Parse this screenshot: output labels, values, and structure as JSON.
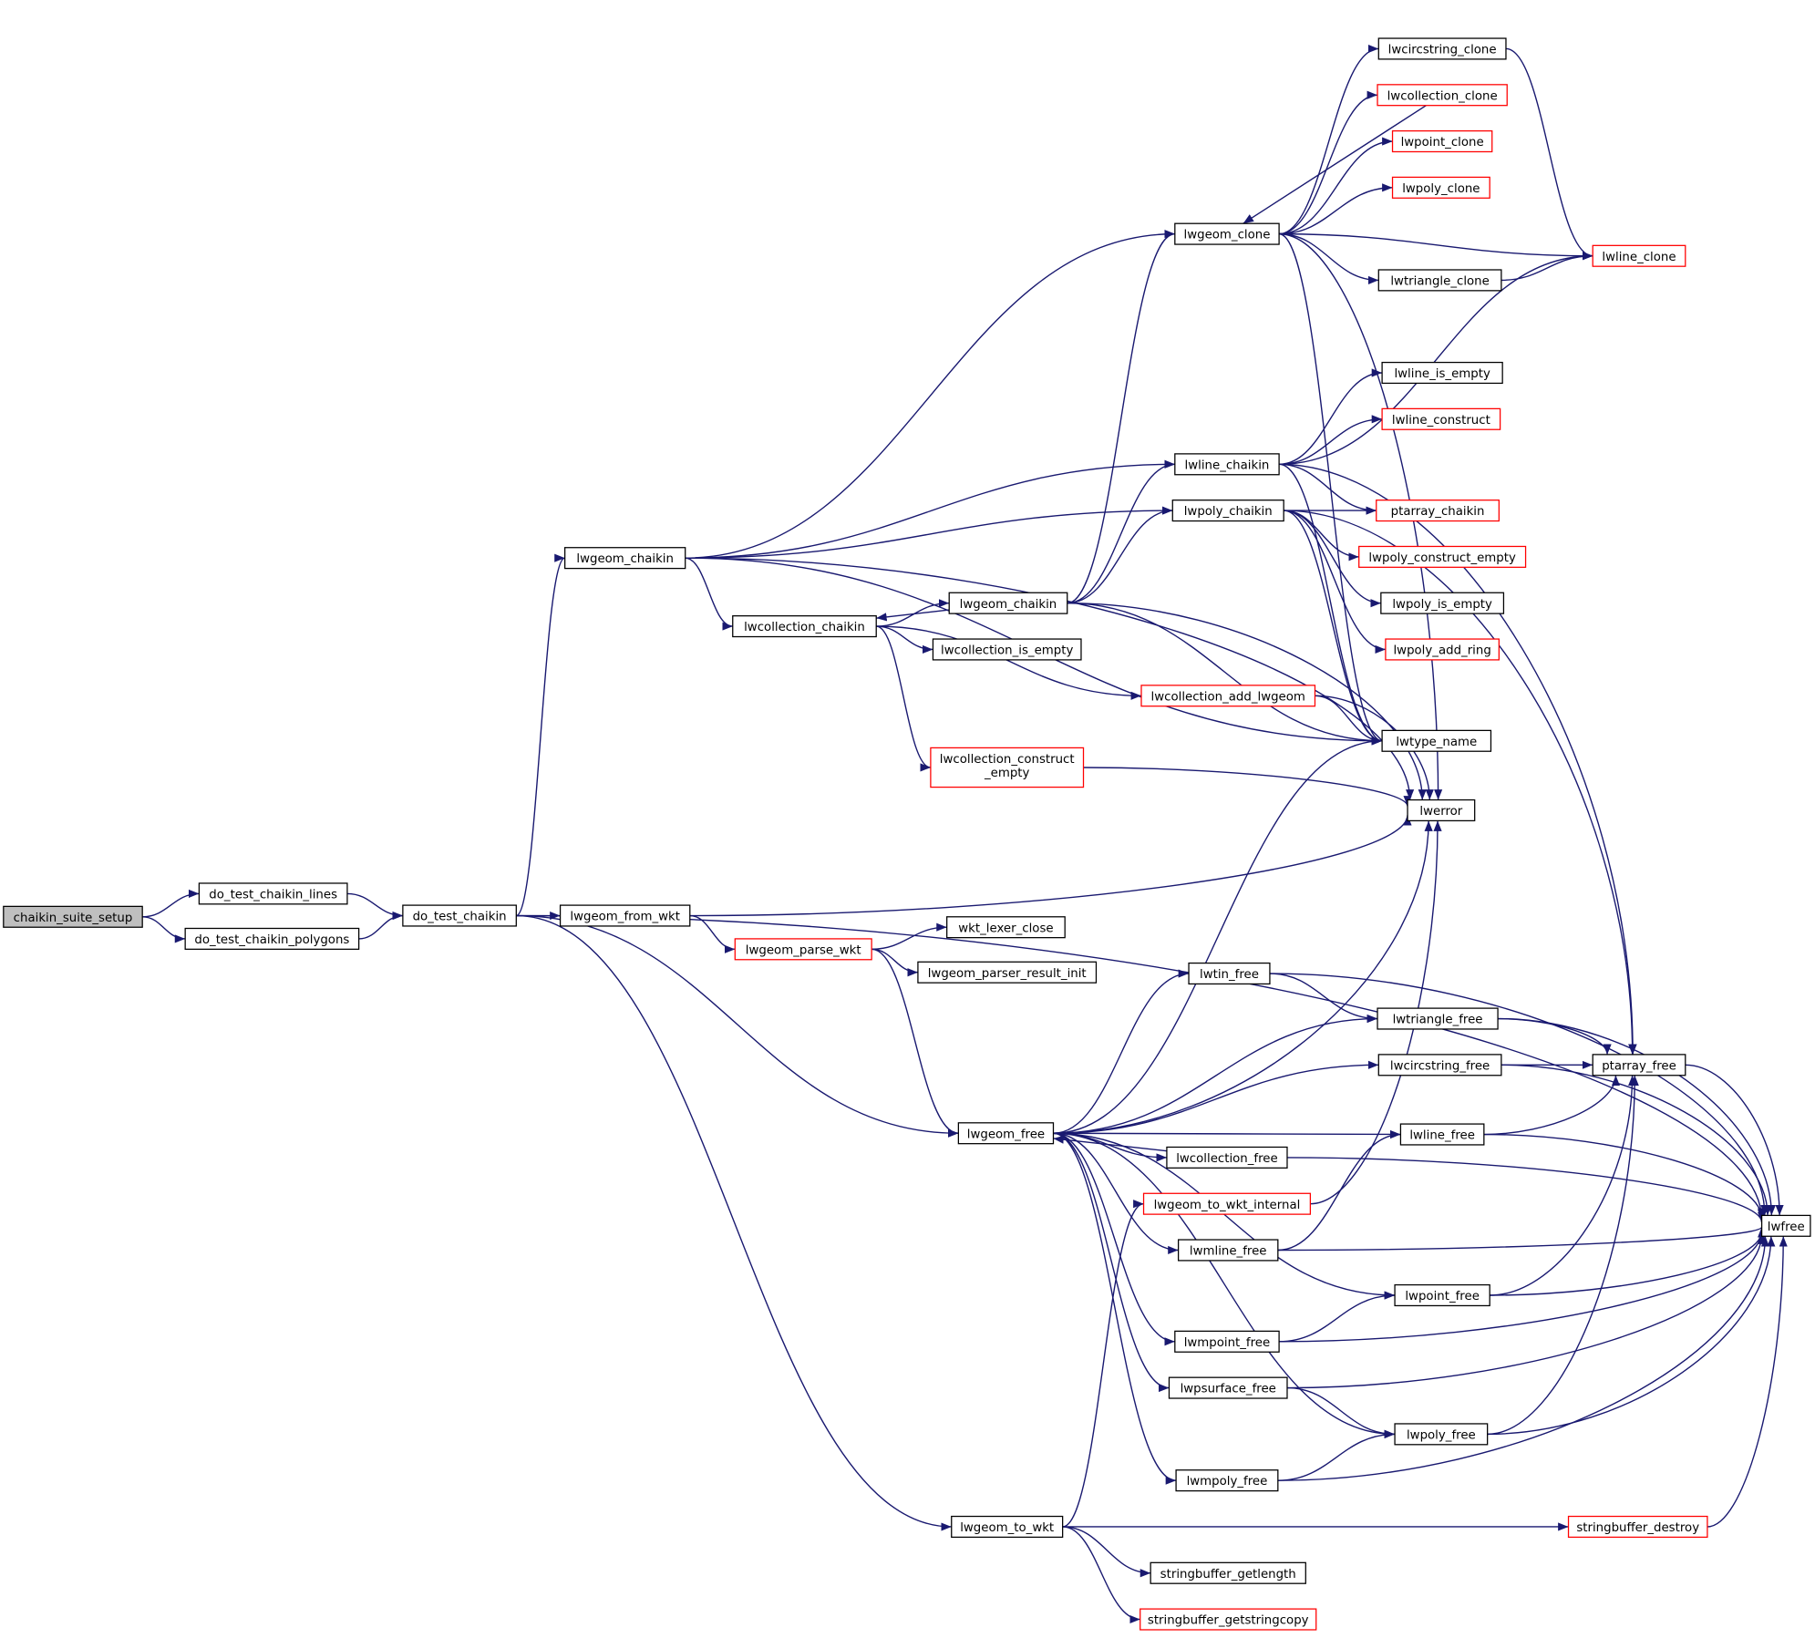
{
  "colors": {
    "edge": "#191970",
    "highlighted_node_fill": "#bfbfbf",
    "incomplete_node_border": "#ff0000",
    "node_border": "#000000"
  },
  "nodes": [
    {
      "id": "chaikin_suite_setup",
      "label": [
        "chaikin_suite_setup"
      ],
      "root": true
    },
    {
      "id": "do_test_chaikin_lines",
      "label": [
        "do_test_chaikin_lines"
      ]
    },
    {
      "id": "do_test_chaikin_polygons",
      "label": [
        "do_test_chaikin_polygons"
      ]
    },
    {
      "id": "do_test_chaikin",
      "label": [
        "do_test_chaikin"
      ]
    },
    {
      "id": "lwgeom_chaikin_a",
      "label": [
        "lwgeom_chaikin"
      ]
    },
    {
      "id": "lwgeom_from_wkt",
      "label": [
        "lwgeom_from_wkt"
      ]
    },
    {
      "id": "lwgeom_parse_wkt",
      "label": [
        "lwgeom_parse_wkt"
      ],
      "red": true
    },
    {
      "id": "wkt_lexer_close",
      "label": [
        "wkt_lexer_close"
      ]
    },
    {
      "id": "lwgeom_parser_result_init",
      "label": [
        "lwgeom_parser_result_init"
      ]
    },
    {
      "id": "lwcollection_chaikin",
      "label": [
        "lwcollection_chaikin"
      ]
    },
    {
      "id": "lwcollection_is_empty",
      "label": [
        "lwcollection_is_empty"
      ]
    },
    {
      "id": "lwgeom_chaikin_b",
      "label": [
        "lwgeom_chaikin"
      ]
    },
    {
      "id": "lwcollection_add_lwgeom",
      "label": [
        "lwcollection_add_lwgeom"
      ],
      "red": true
    },
    {
      "id": "lwcollection_construct_empty",
      "label": [
        "lwcollection_construct",
        "_empty"
      ],
      "red": true
    },
    {
      "id": "lwgeom_clone",
      "label": [
        "lwgeom_clone"
      ]
    },
    {
      "id": "lwline_chaikin",
      "label": [
        "lwline_chaikin"
      ]
    },
    {
      "id": "lwpoly_chaikin",
      "label": [
        "lwpoly_chaikin"
      ]
    },
    {
      "id": "lwcircstring_clone",
      "label": [
        "lwcircstring_clone"
      ]
    },
    {
      "id": "lwcollection_clone",
      "label": [
        "lwcollection_clone"
      ],
      "red": true
    },
    {
      "id": "lwpoint_clone",
      "label": [
        "lwpoint_clone"
      ],
      "red": true
    },
    {
      "id": "lwpoly_clone",
      "label": [
        "lwpoly_clone"
      ],
      "red": true
    },
    {
      "id": "lwtriangle_clone",
      "label": [
        "lwtriangle_clone"
      ]
    },
    {
      "id": "lwline_clone",
      "label": [
        "lwline_clone"
      ],
      "red": true
    },
    {
      "id": "lwline_is_empty",
      "label": [
        "lwline_is_empty"
      ]
    },
    {
      "id": "lwline_construct",
      "label": [
        "lwline_construct"
      ],
      "red": true
    },
    {
      "id": "ptarray_chaikin",
      "label": [
        "ptarray_chaikin"
      ],
      "red": true
    },
    {
      "id": "lwpoly_construct_empty",
      "label": [
        "lwpoly_construct_empty"
      ],
      "red": true
    },
    {
      "id": "lwpoly_is_empty",
      "label": [
        "lwpoly_is_empty"
      ]
    },
    {
      "id": "lwpoly_add_ring",
      "label": [
        "lwpoly_add_ring"
      ],
      "red": true
    },
    {
      "id": "lwtype_name",
      "label": [
        "lwtype_name"
      ]
    },
    {
      "id": "lwerror",
      "label": [
        "lwerror"
      ]
    },
    {
      "id": "lwgeom_free",
      "label": [
        "lwgeom_free"
      ]
    },
    {
      "id": "lwtin_free",
      "label": [
        "lwtin_free"
      ]
    },
    {
      "id": "lwtriangle_free",
      "label": [
        "lwtriangle_free"
      ]
    },
    {
      "id": "lwcircstring_free",
      "label": [
        "lwcircstring_free"
      ]
    },
    {
      "id": "ptarray_free",
      "label": [
        "ptarray_free"
      ]
    },
    {
      "id": "lwline_free",
      "label": [
        "lwline_free"
      ]
    },
    {
      "id": "lwcollection_free",
      "label": [
        "lwcollection_free"
      ]
    },
    {
      "id": "lwgeom_to_wkt_internal",
      "label": [
        "lwgeom_to_wkt_internal"
      ],
      "red": true
    },
    {
      "id": "lwfree",
      "label": [
        "lwfree"
      ]
    },
    {
      "id": "lwmline_free",
      "label": [
        "lwmline_free"
      ]
    },
    {
      "id": "lwpoint_free",
      "label": [
        "lwpoint_free"
      ]
    },
    {
      "id": "lwmpoint_free",
      "label": [
        "lwmpoint_free"
      ]
    },
    {
      "id": "lwpsurface_free",
      "label": [
        "lwpsurface_free"
      ]
    },
    {
      "id": "lwpoly_free",
      "label": [
        "lwpoly_free"
      ]
    },
    {
      "id": "lwmpoly_free",
      "label": [
        "lwmpoly_free"
      ]
    },
    {
      "id": "lwgeom_to_wkt",
      "label": [
        "lwgeom_to_wkt"
      ]
    },
    {
      "id": "stringbuffer_destroy",
      "label": [
        "stringbuffer_destroy"
      ],
      "red": true
    },
    {
      "id": "stringbuffer_getlength",
      "label": [
        "stringbuffer_getlength"
      ]
    },
    {
      "id": "stringbuffer_getstringcopy",
      "label": [
        "stringbuffer_getstringcopy"
      ],
      "red": true
    }
  ],
  "edges": [
    [
      "chaikin_suite_setup",
      "do_test_chaikin_lines"
    ],
    [
      "chaikin_suite_setup",
      "do_test_chaikin_polygons"
    ],
    [
      "do_test_chaikin_lines",
      "do_test_chaikin"
    ],
    [
      "do_test_chaikin_polygons",
      "do_test_chaikin"
    ],
    [
      "do_test_chaikin",
      "lwfree"
    ],
    [
      "do_test_chaikin",
      "lwgeom_chaikin_a"
    ],
    [
      "do_test_chaikin",
      "lwgeom_from_wkt"
    ],
    [
      "do_test_chaikin",
      "lwgeom_free"
    ],
    [
      "do_test_chaikin",
      "lwgeom_to_wkt"
    ],
    [
      "lwgeom_chaikin_a",
      "lwgeom_clone"
    ],
    [
      "lwgeom_chaikin_a",
      "lwline_chaikin"
    ],
    [
      "lwgeom_chaikin_a",
      "lwpoly_chaikin"
    ],
    [
      "lwgeom_chaikin_a",
      "lwtype_name"
    ],
    [
      "lwgeom_chaikin_a",
      "lwcollection_chaikin"
    ],
    [
      "lwgeom_chaikin_a",
      "lwerror"
    ],
    [
      "lwcollection_chaikin",
      "lwgeom_chaikin_b"
    ],
    [
      "lwcollection_chaikin",
      "lwcollection_is_empty"
    ],
    [
      "lwcollection_chaikin",
      "lwcollection_add_lwgeom"
    ],
    [
      "lwcollection_chaikin",
      "lwcollection_construct_empty"
    ],
    [
      "lwgeom_chaikin_b",
      "lwcollection_chaikin"
    ],
    [
      "lwgeom_chaikin_b",
      "lwgeom_clone"
    ],
    [
      "lwgeom_chaikin_b",
      "lwline_chaikin"
    ],
    [
      "lwgeom_chaikin_b",
      "lwpoly_chaikin"
    ],
    [
      "lwgeom_chaikin_b",
      "lwtype_name"
    ],
    [
      "lwgeom_chaikin_b",
      "lwerror"
    ],
    [
      "lwgeom_clone",
      "lwcircstring_clone"
    ],
    [
      "lwgeom_clone",
      "lwcollection_clone"
    ],
    [
      "lwgeom_clone",
      "lwpoint_clone"
    ],
    [
      "lwgeom_clone",
      "lwpoly_clone"
    ],
    [
      "lwgeom_clone",
      "lwline_clone"
    ],
    [
      "lwgeom_clone",
      "lwtriangle_clone"
    ],
    [
      "lwgeom_clone",
      "lwtype_name"
    ],
    [
      "lwgeom_clone",
      "lwerror"
    ],
    [
      "lwcollection_clone",
      "lwgeom_clone"
    ],
    [
      "lwcircstring_clone",
      "lwline_clone"
    ],
    [
      "lwtriangle_clone",
      "lwline_clone"
    ],
    [
      "lwline_chaikin",
      "lwline_clone"
    ],
    [
      "lwline_chaikin",
      "lwline_is_empty"
    ],
    [
      "lwline_chaikin",
      "lwline_construct"
    ],
    [
      "lwline_chaikin",
      "ptarray_free"
    ],
    [
      "lwline_chaikin",
      "ptarray_chaikin"
    ],
    [
      "lwline_chaikin",
      "lwtype_name"
    ],
    [
      "lwpoly_chaikin",
      "ptarray_chaikin"
    ],
    [
      "lwpoly_chaikin",
      "lwpoly_construct_empty"
    ],
    [
      "lwpoly_chaikin",
      "lwpoly_is_empty"
    ],
    [
      "lwpoly_chaikin",
      "lwpoly_add_ring"
    ],
    [
      "lwpoly_chaikin",
      "ptarray_free"
    ],
    [
      "lwpoly_chaikin",
      "lwtype_name"
    ],
    [
      "lwcollection_add_lwgeom",
      "lwtype_name"
    ],
    [
      "lwcollection_add_lwgeom",
      "lwerror"
    ],
    [
      "lwcollection_construct_empty",
      "lwerror"
    ],
    [
      "lwgeom_from_wkt",
      "lwerror"
    ],
    [
      "lwgeom_from_wkt",
      "lwgeom_parse_wkt"
    ],
    [
      "lwgeom_parse_wkt",
      "wkt_lexer_close"
    ],
    [
      "lwgeom_parse_wkt",
      "lwgeom_parser_result_init"
    ],
    [
      "lwgeom_parse_wkt",
      "lwgeom_free"
    ],
    [
      "lwgeom_free",
      "lwtype_name"
    ],
    [
      "lwgeom_free",
      "lwerror"
    ],
    [
      "lwgeom_free",
      "lwtin_free"
    ],
    [
      "lwgeom_free",
      "lwtriangle_free"
    ],
    [
      "lwgeom_free",
      "lwcircstring_free"
    ],
    [
      "lwgeom_free",
      "lwline_free"
    ],
    [
      "lwgeom_free",
      "lwcollection_free"
    ],
    [
      "lwgeom_free",
      "lwmline_free"
    ],
    [
      "lwgeom_free",
      "lwpoint_free"
    ],
    [
      "lwgeom_free",
      "lwmpoint_free"
    ],
    [
      "lwgeom_free",
      "lwpsurface_free"
    ],
    [
      "lwgeom_free",
      "lwpoly_free"
    ],
    [
      "lwgeom_free",
      "lwmpoly_free"
    ],
    [
      "lwcollection_free",
      "lwgeom_free"
    ],
    [
      "lwcollection_free",
      "lwfree"
    ],
    [
      "lwtin_free",
      "lwtriangle_free"
    ],
    [
      "lwtin_free",
      "lwfree"
    ],
    [
      "lwtriangle_free",
      "ptarray_free"
    ],
    [
      "lwtriangle_free",
      "lwfree"
    ],
    [
      "lwcircstring_free",
      "ptarray_free"
    ],
    [
      "lwcircstring_free",
      "lwfree"
    ],
    [
      "lwline_free",
      "ptarray_free"
    ],
    [
      "lwline_free",
      "lwfree"
    ],
    [
      "lwgeom_to_wkt_internal",
      "lwerror"
    ],
    [
      "lwmline_free",
      "lwline_free"
    ],
    [
      "lwmline_free",
      "lwfree"
    ],
    [
      "lwpoint_free",
      "ptarray_free"
    ],
    [
      "lwpoint_free",
      "lwfree"
    ],
    [
      "lwmpoint_free",
      "lwpoint_free"
    ],
    [
      "lwmpoint_free",
      "lwfree"
    ],
    [
      "lwpsurface_free",
      "lwpoly_free"
    ],
    [
      "lwpsurface_free",
      "lwfree"
    ],
    [
      "lwpoly_free",
      "ptarray_free"
    ],
    [
      "lwpoly_free",
      "lwfree"
    ],
    [
      "lwmpoly_free",
      "lwpoly_free"
    ],
    [
      "lwmpoly_free",
      "lwfree"
    ],
    [
      "lwgeom_to_wkt",
      "lwgeom_to_wkt_internal"
    ],
    [
      "lwgeom_to_wkt",
      "stringbuffer_destroy"
    ],
    [
      "lwgeom_to_wkt",
      "stringbuffer_getlength"
    ],
    [
      "lwgeom_to_wkt",
      "stringbuffer_getstringcopy"
    ],
    [
      "stringbuffer_destroy",
      "lwfree"
    ],
    [
      "ptarray_free",
      "lwfree"
    ]
  ]
}
